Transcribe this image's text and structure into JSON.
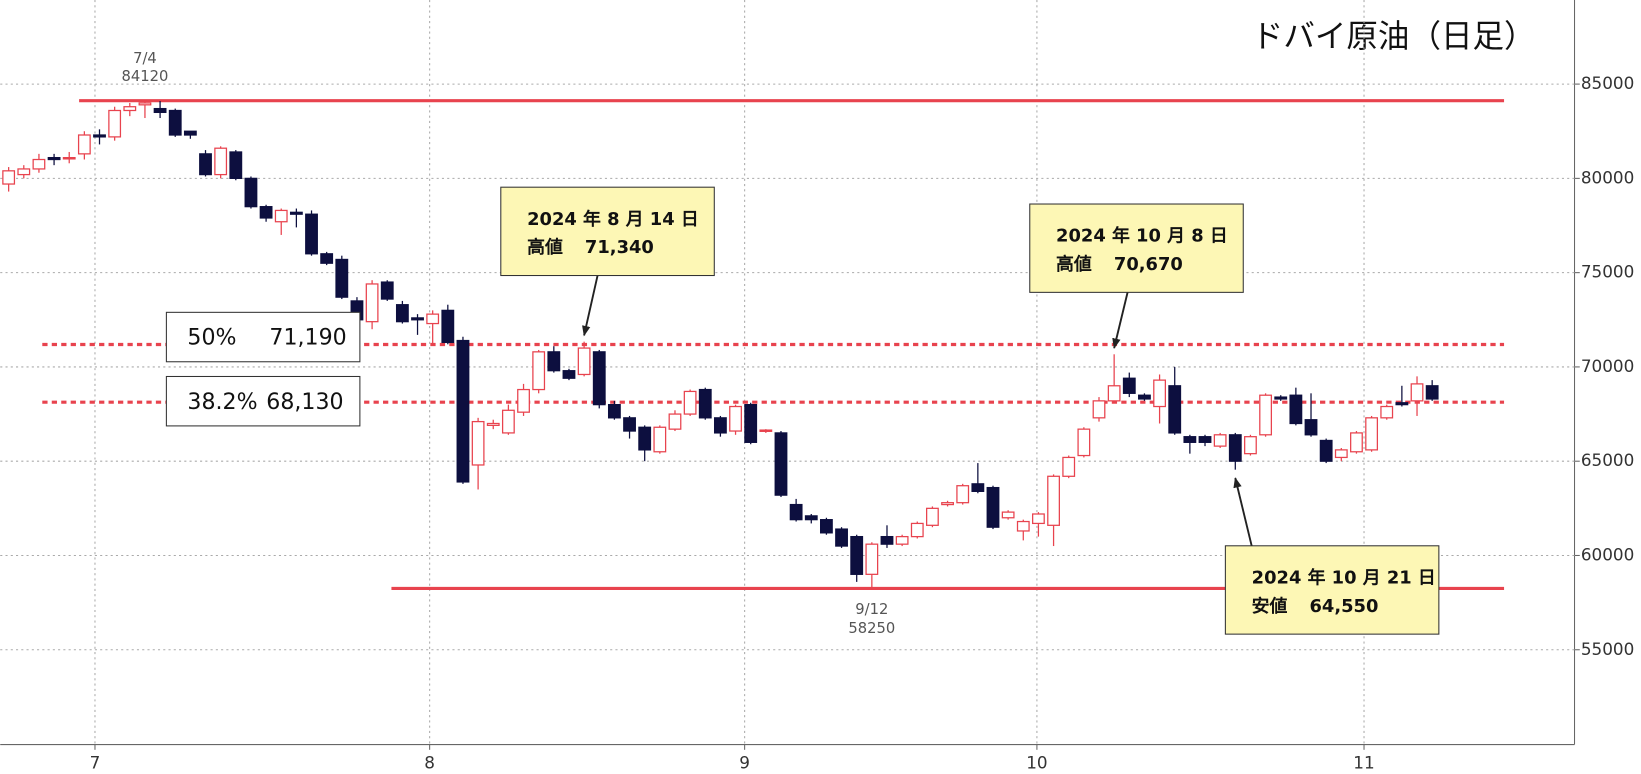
{
  "chart_data": {
    "type": "candlestick",
    "title": "ドバイ原油（日足）",
    "open": [
      79700,
      80200,
      80500,
      81100,
      81100,
      81300,
      82300,
      82200,
      83600,
      83900,
      83700,
      83600,
      82500,
      81300,
      80200,
      81400,
      80000,
      78500,
      77700,
      78200,
      78100,
      76000,
      75700,
      73500,
      72400,
      74500,
      73300,
      72600,
      72300,
      73000,
      71400,
      64800,
      66900,
      66500,
      67600,
      68800,
      70800,
      69800,
      69600,
      70800,
      68000,
      67300,
      66800,
      65500,
      66700,
      67500,
      68800,
      67300,
      66600,
      68000,
      66600,
      66500,
      62700,
      62100,
      61900,
      61400,
      61000,
      59000,
      61000,
      60600,
      61000,
      61600,
      62700,
      62800,
      63800,
      63600,
      62000,
      61300,
      61700,
      61600,
      64200,
      65300,
      67300,
      68200,
      69400,
      68500,
      67900,
      69000,
      66300,
      66300,
      65800,
      66400,
      65400,
      66400,
      68400,
      68500,
      67200,
      66100,
      65200,
      65500,
      65600,
      67300,
      68100,
      68200,
      69000
    ],
    "high": [
      80600,
      80700,
      81300,
      81300,
      81400,
      82500,
      82600,
      83800,
      84000,
      84120,
      84100,
      83700,
      82500,
      81500,
      81700,
      81500,
      80100,
      78600,
      78400,
      78400,
      78300,
      76100,
      75900,
      73700,
      74600,
      74600,
      73500,
      72800,
      73000,
      73300,
      71600,
      67300,
      67200,
      68000,
      69100,
      70900,
      71100,
      69900,
      71340,
      70900,
      68200,
      67400,
      66900,
      66900,
      67700,
      68800,
      68900,
      67400,
      68000,
      68100,
      66700,
      66600,
      63000,
      62200,
      62000,
      61500,
      61100,
      60700,
      61600,
      61100,
      61800,
      62600,
      62900,
      63800,
      64900,
      63700,
      62400,
      61900,
      62300,
      64300,
      65300,
      66800,
      68400,
      70670,
      69700,
      68600,
      69600,
      70000,
      66400,
      66400,
      66500,
      66500,
      66400,
      68600,
      68500,
      68900,
      68600,
      66200,
      65700,
      66600,
      67400,
      68000,
      69000,
      69500,
      69300
    ],
    "low": [
      79300,
      80000,
      80300,
      80700,
      80800,
      81000,
      81800,
      82000,
      83300,
      83200,
      83200,
      82200,
      82100,
      80100,
      80000,
      79900,
      78400,
      77700,
      77000,
      77400,
      75900,
      75400,
      73600,
      72300,
      72000,
      73500,
      72300,
      71700,
      71200,
      71200,
      63800,
      63500,
      66700,
      66400,
      67400,
      68600,
      69700,
      69300,
      69500,
      67800,
      67200,
      66200,
      65000,
      65400,
      66600,
      67400,
      67200,
      66300,
      66400,
      65900,
      66500,
      63100,
      61800,
      61700,
      61100,
      60400,
      58600,
      58250,
      60400,
      60500,
      60900,
      61500,
      62600,
      62700,
      63300,
      61400,
      61900,
      60800,
      61000,
      60500,
      64100,
      65200,
      67100,
      68100,
      68400,
      68200,
      67000,
      66400,
      65400,
      65800,
      65700,
      64550,
      65300,
      66300,
      68200,
      66900,
      66300,
      64900,
      65000,
      65400,
      65500,
      67200,
      67900,
      67400,
      68200
    ],
    "close": [
      80400,
      80500,
      81000,
      81000,
      81100,
      82300,
      82200,
      83600,
      83800,
      84000,
      83500,
      82300,
      82300,
      80200,
      81600,
      80000,
      78500,
      77900,
      78300,
      78100,
      76000,
      75500,
      73700,
      72500,
      74400,
      73600,
      72400,
      72500,
      72800,
      71300,
      63900,
      67100,
      67000,
      67700,
      68800,
      70800,
      69800,
      69400,
      71000,
      68000,
      67300,
      66600,
      65600,
      66800,
      67500,
      68700,
      67300,
      66500,
      67900,
      66000,
      66650,
      63200,
      61900,
      61900,
      61200,
      60500,
      59000,
      60600,
      60600,
      61000,
      61700,
      62500,
      62800,
      63700,
      63400,
      61500,
      62300,
      61800,
      62200,
      64200,
      65200,
      66700,
      68200,
      69000,
      68600,
      68300,
      69300,
      66500,
      66000,
      66000,
      66400,
      65000,
      66300,
      68500,
      68300,
      67000,
      66400,
      65000,
      65600,
      66500,
      67300,
      67900,
      68000,
      69100,
      68300
    ],
    "up_color": "#e8434e",
    "down_color": "#0d0f3f",
    "level_color": "#e8434e",
    "xlim": [
      -0.556,
      103.4
    ],
    "xticks": [
      {
        "value": 5.7,
        "label": "7"
      },
      {
        "value": 27.8,
        "label": "8"
      },
      {
        "value": 48.6,
        "label": "9"
      },
      {
        "value": 67.9,
        "label": "10"
      },
      {
        "value": 89.5,
        "label": "11"
      }
    ],
    "ylim": [
      50000,
      89460
    ],
    "yticks": [
      55000,
      60000,
      65000,
      70000,
      75000,
      80000,
      85000
    ],
    "grid": true,
    "extremes": [
      {
        "date": "7/4",
        "value": 84120
      },
      {
        "date": "9/12",
        "value": 58250
      }
    ],
    "fib_levels": [
      {
        "ratio": "50%",
        "value": 71190,
        "label": "71,190"
      },
      {
        "ratio": "38.2%",
        "value": 68130,
        "label": "68,130"
      }
    ],
    "callouts": [
      {
        "date": "2024 年 8 月 14 日",
        "kind": "高値",
        "value": 71340,
        "label": "71,340"
      },
      {
        "date": "2024 年 10 月 8 日",
        "kind": "高値",
        "value": 70670,
        "label": "70,670"
      },
      {
        "date": "2024 年 10 月 21 日",
        "kind": "安値",
        "value": 64550,
        "label": "64,550"
      }
    ]
  }
}
